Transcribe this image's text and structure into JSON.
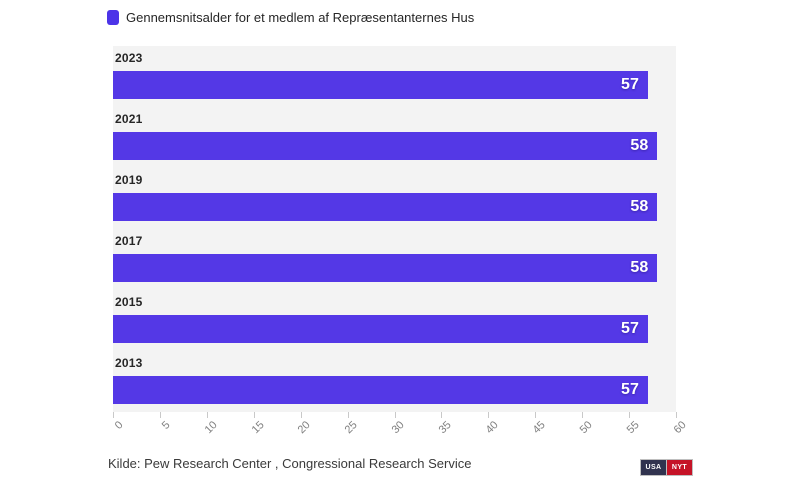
{
  "legend": {
    "label": "Gennemsnitsalder for et medlem af Repræsentanternes Hus"
  },
  "chart_data": {
    "type": "bar",
    "orientation": "horizontal",
    "title": "Gennemsnitsalder for et medlem af Repræsentanternes Hus",
    "categories": [
      "2023",
      "2021",
      "2019",
      "2017",
      "2015",
      "2013"
    ],
    "values": [
      57,
      58,
      58,
      58,
      57,
      57
    ],
    "xlabel": "",
    "ylabel": "",
    "xlim": [
      0,
      60
    ],
    "xticks": [
      0,
      5,
      10,
      15,
      20,
      25,
      30,
      35,
      40,
      45,
      50,
      55,
      60
    ],
    "tick_label_rotation_deg": -45,
    "grid": false,
    "legend_position": "top-left",
    "value_labels": "inside-end",
    "colors": {
      "bar": "#5438e6",
      "legend_swatch": "#4c34e8",
      "plot_background": "#f3f3f3",
      "value_label": "#ffffff",
      "category_label": "#262626",
      "tick_label": "#808080"
    }
  },
  "footer": {
    "source": "Kilde: Pew Research Center , Congressional Research Service",
    "badges": [
      {
        "label": "USA",
        "color": "#31334f"
      },
      {
        "label": "NYT",
        "color": "#c51327"
      }
    ]
  }
}
